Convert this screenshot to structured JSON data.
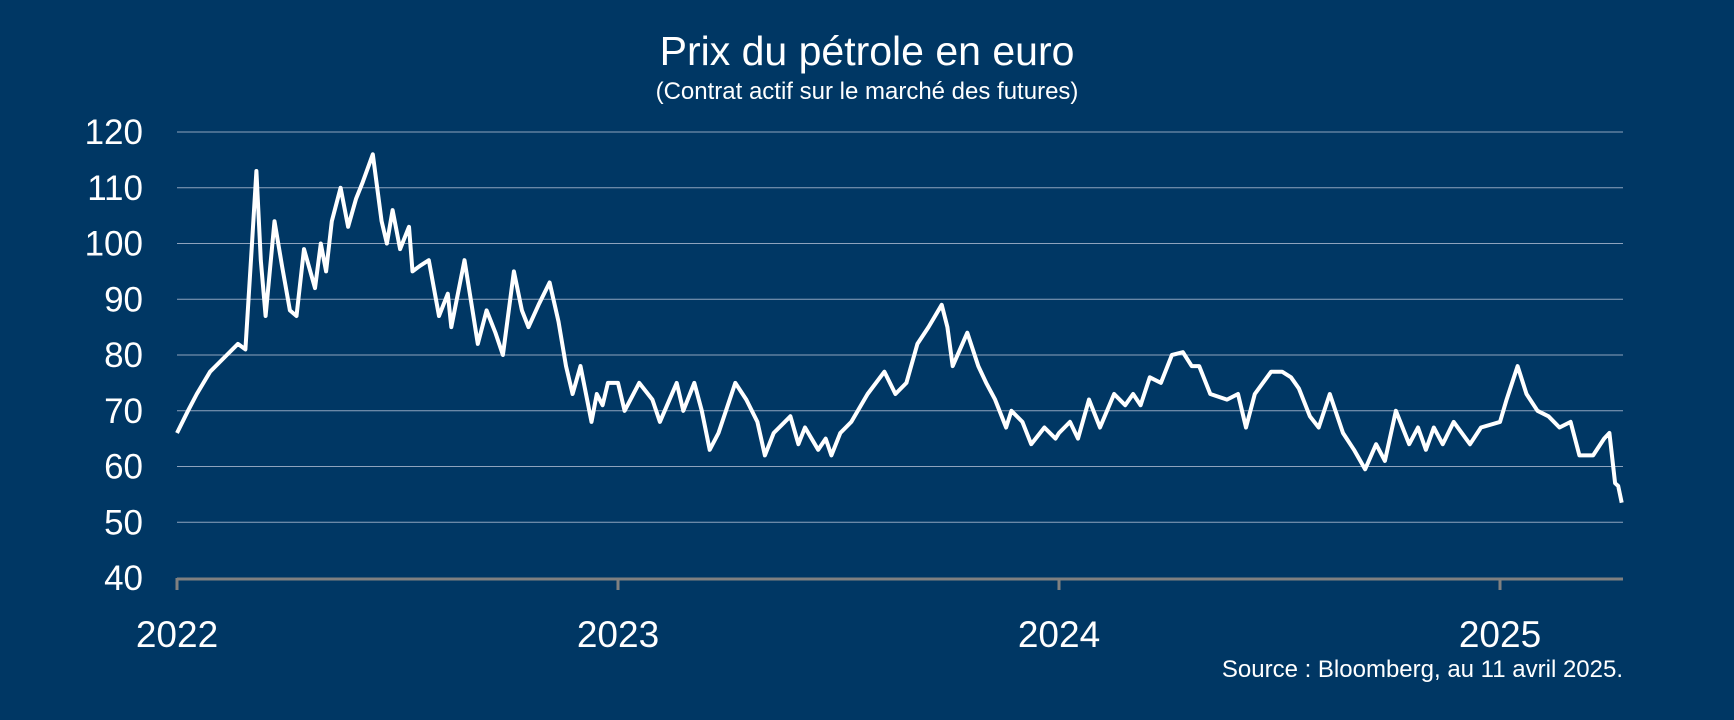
{
  "chart_data": {
    "type": "line",
    "title": "Prix du pétrole en euro",
    "subtitle": "(Contrat actif sur le marché des futures)",
    "source": "Source : Bloomberg, au 11 avril 2025.",
    "xlabel": "",
    "ylabel": "",
    "ylim": [
      40,
      120
    ],
    "xlim": [
      2022.0,
      2025.276
    ],
    "yticks": [
      "40",
      "50",
      "60",
      "70",
      "80",
      "90",
      "100",
      "110",
      "120"
    ],
    "xticks": [
      {
        "label": "2022",
        "t": 2022
      },
      {
        "label": "2023",
        "t": 2023
      },
      {
        "label": "2024",
        "t": 2024
      },
      {
        "label": "2025",
        "t": 2025
      }
    ],
    "grid": true,
    "colors": {
      "background": "#003764",
      "line": "#ffffff",
      "grid": "#8ea3bd",
      "axis": "#808080"
    },
    "series": [
      {
        "name": "Prix du pétrole en euro",
        "t": [
          2022.0,
          2022.025,
          2022.045,
          2022.075,
          2022.113,
          2022.138,
          2022.155,
          2022.17,
          2022.18,
          2022.19,
          2022.201,
          2022.221,
          2022.238,
          2022.256,
          2022.271,
          2022.288,
          2022.313,
          2022.326,
          2022.338,
          2022.351,
          2022.371,
          2022.388,
          2022.406,
          2022.421,
          2022.444,
          2022.464,
          2022.476,
          2022.489,
          2022.506,
          2022.526,
          2022.534,
          2022.551,
          2022.571,
          2022.594,
          2022.614,
          2022.622,
          2022.652,
          2022.672,
          2022.682,
          2022.702,
          2022.722,
          2022.739,
          2022.764,
          2022.782,
          2022.797,
          2022.82,
          2022.845,
          2022.865,
          2022.882,
          2022.897,
          2022.915,
          2022.94,
          2022.952,
          2022.965,
          2022.977,
          2023.0,
          2023.015,
          2023.048,
          2023.078,
          2023.095,
          2023.133,
          2023.148,
          2023.173,
          2023.19,
          2023.208,
          2023.228,
          2023.266,
          2023.291,
          2023.316,
          2023.333,
          2023.353,
          2023.391,
          2023.409,
          2023.424,
          2023.454,
          2023.471,
          2023.484,
          2023.504,
          2023.529,
          2023.566,
          2023.604,
          2023.629,
          2023.654,
          2023.679,
          2023.704,
          2023.734,
          2023.747,
          2023.759,
          2023.792,
          2023.817,
          2023.835,
          2023.855,
          2023.88,
          2023.892,
          2023.917,
          2023.937,
          2023.967,
          2023.992,
          2024.0,
          2024.025,
          2024.043,
          2024.068,
          2024.093,
          2024.125,
          2024.15,
          2024.168,
          2024.185,
          2024.206,
          2024.231,
          2024.256,
          2024.281,
          2024.301,
          2024.318,
          2024.343,
          2024.381,
          2024.406,
          2024.424,
          2024.444,
          2024.481,
          2024.506,
          2024.526,
          2024.544,
          2024.569,
          2024.589,
          2024.614,
          2024.644,
          2024.669,
          2024.694,
          2024.719,
          2024.739,
          2024.764,
          2024.794,
          2024.814,
          2024.832,
          2024.85,
          2024.87,
          2024.895,
          2024.932,
          2024.957,
          2025.0,
          2025.015,
          2025.04,
          2025.06,
          2025.085,
          2025.11,
          2025.135,
          2025.16,
          2025.18,
          2025.211,
          2025.236,
          2025.248,
          2025.261,
          2025.268,
          2025.276
        ],
        "values": [
          66,
          70,
          73,
          77,
          80,
          82,
          81,
          100,
          113,
          97,
          87,
          104,
          96,
          88,
          87,
          99,
          92,
          100,
          95,
          104,
          110,
          103,
          108,
          111,
          116,
          104,
          100,
          106,
          99,
          103,
          95,
          96,
          97,
          87,
          91,
          85,
          97,
          87,
          82,
          88,
          84,
          80,
          95,
          88,
          85,
          89,
          93,
          86,
          78,
          73,
          78,
          68,
          73,
          71,
          75,
          75,
          70,
          75,
          72,
          68,
          75,
          70,
          75,
          70,
          63,
          66,
          75,
          72,
          68,
          62,
          66,
          69,
          64,
          67,
          63,
          65,
          62,
          66,
          68,
          73,
          77,
          73,
          75,
          82,
          85,
          89,
          85,
          78,
          84,
          78,
          75,
          72,
          67,
          70,
          68,
          64,
          67,
          65,
          66,
          68,
          65,
          72,
          67,
          73,
          71,
          73,
          71,
          76,
          75,
          80,
          80.5,
          78,
          78,
          73,
          72,
          73,
          67,
          73,
          77,
          77,
          76,
          74,
          69,
          67,
          73,
          66,
          63,
          59.5,
          64,
          61,
          70,
          64,
          67,
          63,
          67,
          64,
          68,
          64,
          67,
          68,
          72,
          78,
          73,
          70,
          69,
          67,
          68,
          62,
          62,
          65,
          66,
          57,
          56.5,
          53.5
        ]
      }
    ]
  }
}
